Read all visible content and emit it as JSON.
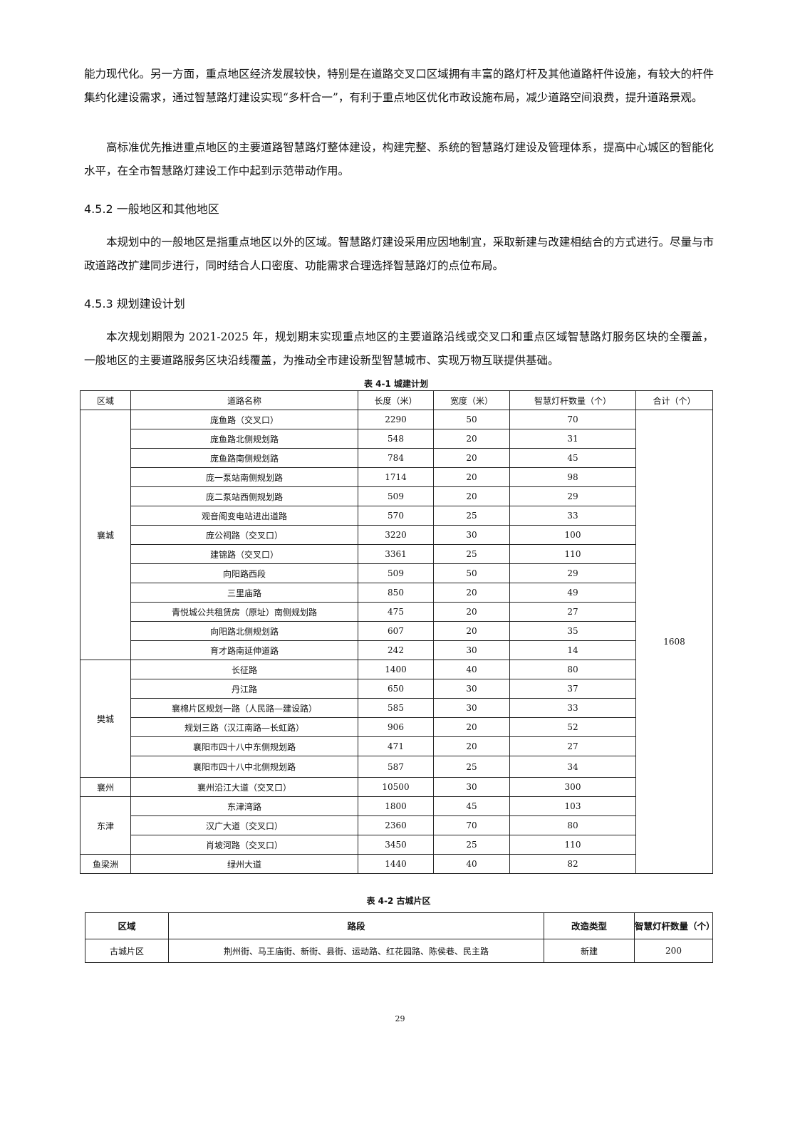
{
  "paragraphs": [
    "能力现代化。另一方面，重点地区经济发展较快，特别是在道路交叉口区域拥有丰富的路灯杆及其他道路杆件设施，有较大的杆件集约化建设需求，通过智慧路灯建设实现“多杆合一”，有利于重点地区优化市政设施布局，减少道路空间浪费，提升道路景观。",
    "高标准优先推进重点地区的主要道路智慧路灯整体建设，构建完整、系统的智慧路灯建设及管理体系，提高中心城区的智能化水平，在全市智慧路灯建设工作中起到示范带动作用。",
    "本规划中的一般地区是指重点地区以外的区域。智慧路灯建设采用应因地制宜，采取新建与改建相结合的方式进行。尽量与市政道路改扩建同步进行，同时结合人口密度、功能需求合理选择智慧路灯的点位布局。",
    "本次规划期限为 2021-2025 年，规划期末实现重点地区的主要道路沿线或交叉口和重点区域智慧路灯服务区块的全覆盖，一般地区的主要道路服务区块沿线覆盖，为推动全市建设新型智慧城市、实现万物互联提供基础。"
  ],
  "headings": [
    "4.5.2  一般地区和其他地区",
    "4.5.3  规划建设计划"
  ],
  "table1": {
    "caption": "表 4-1 城建计划",
    "headers": [
      "区域",
      "道路名称",
      "长度（米）",
      "宽度（米）",
      "智慧灯杆数量（个）",
      "合计（个）"
    ],
    "total": "1608",
    "groups": [
      {
        "area": "襄城",
        "rows": [
          [
            "庞鱼路（交叉口）",
            "2290",
            "50",
            "70"
          ],
          [
            "庞鱼路北侧规划路",
            "548",
            "20",
            "31"
          ],
          [
            "庞鱼路南侧规划路",
            "784",
            "20",
            "45"
          ],
          [
            "庞一泵站南侧规划路",
            "1714",
            "20",
            "98"
          ],
          [
            "庞二泵站西侧规划路",
            "509",
            "20",
            "29"
          ],
          [
            "观音阁变电站进出道路",
            "570",
            "25",
            "33"
          ],
          [
            "庞公祠路（交叉口）",
            "3220",
            "30",
            "100"
          ],
          [
            "建锦路（交叉口）",
            "3361",
            "25",
            "110"
          ],
          [
            "向阳路西段",
            "509",
            "50",
            "29"
          ],
          [
            "三里庙路",
            "850",
            "20",
            "49"
          ],
          [
            "青悦城公共租赁房（原址）南侧规划路",
            "475",
            "20",
            "27"
          ],
          [
            "向阳路北侧规划路",
            "607",
            "20",
            "35"
          ],
          [
            "育才路南延伸道路",
            "242",
            "30",
            "14"
          ]
        ]
      },
      {
        "area": "樊城",
        "rows": [
          [
            "长征路",
            "1400",
            "40",
            "80"
          ],
          [
            "丹江路",
            "650",
            "30",
            "37"
          ],
          [
            "襄棉片区规划一路（人民路—建设路）",
            "585",
            "30",
            "33"
          ],
          [
            "规划三路（汉江南路—长虹路）",
            "906",
            "20",
            "52"
          ],
          [
            "襄阳市四十八中东侧规划路",
            "471",
            "20",
            "27"
          ],
          [
            "襄阳市四十八中北侧规划路",
            "587",
            "25",
            "34"
          ]
        ]
      },
      {
        "area": "襄州",
        "rows": [
          [
            "襄州沿江大道（交叉口）",
            "10500",
            "30",
            "300"
          ]
        ]
      },
      {
        "area": "东津",
        "rows": [
          [
            "东津湾路",
            "1800",
            "45",
            "103"
          ],
          [
            "汉广大道（交叉口）",
            "2360",
            "70",
            "80"
          ],
          [
            "肖坡河路（交叉口）",
            "3450",
            "25",
            "110"
          ]
        ]
      },
      {
        "area": "鱼梁洲",
        "rows": [
          [
            "绿州大道",
            "1440",
            "40",
            "82"
          ]
        ]
      }
    ]
  },
  "table2": {
    "caption": "表 4-2  古城片区",
    "headers": [
      "区域",
      "路段",
      "改造类型",
      "智慧灯杆数量（个）"
    ],
    "rows": [
      [
        "古城片区",
        "荆州街、马王庙街、新街、县街、运动路、红花园路、陈侯巷、民主路",
        "新建",
        "200"
      ]
    ]
  },
  "page_number": "29"
}
